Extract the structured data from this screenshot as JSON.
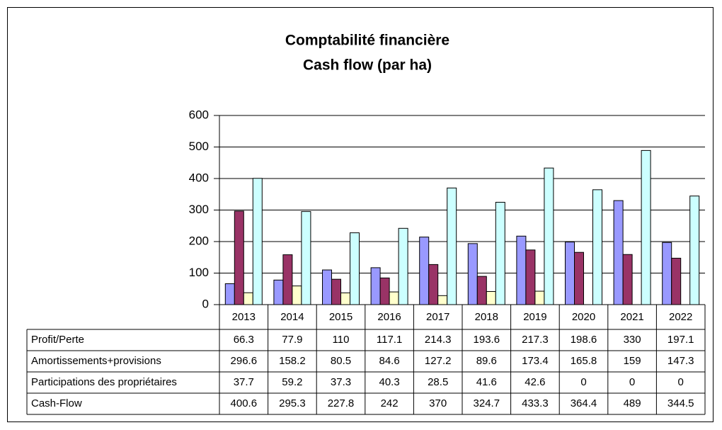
{
  "chart_data": {
    "type": "bar",
    "title": "Comptabilité financière",
    "subtitle": "Cash flow (par ha)",
    "categories": [
      "2013",
      "2014",
      "2015",
      "2016",
      "2017",
      "2018",
      "2019",
      "2020",
      "2021",
      "2022"
    ],
    "series": [
      {
        "name": "Profit/Perte",
        "color": "#9999ff",
        "values": [
          66.3,
          77.9,
          110,
          117.1,
          214.3,
          193.6,
          217.3,
          198.6,
          330,
          197.1
        ]
      },
      {
        "name": "Amortissements+provisions",
        "color": "#993366",
        "values": [
          296.6,
          158.2,
          80.5,
          84.6,
          127.2,
          89.6,
          173.4,
          165.8,
          159,
          147.3
        ]
      },
      {
        "name": "Participations des propriétaires",
        "color": "#ffffcc",
        "values": [
          37.7,
          59.2,
          37.3,
          40.3,
          28.5,
          41.6,
          42.6,
          0,
          0,
          0
        ]
      },
      {
        "name": "Cash-Flow",
        "color": "#ccffff",
        "values": [
          400.6,
          295.3,
          227.8,
          242,
          370,
          324.7,
          433.3,
          364.4,
          489,
          344.5
        ]
      }
    ],
    "ylim": [
      0,
      600
    ],
    "yticks": [
      0,
      100,
      200,
      300,
      400,
      500,
      600
    ],
    "grid": true
  }
}
